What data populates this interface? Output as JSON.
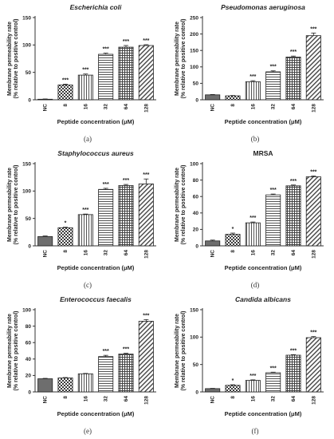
{
  "figure": {
    "y_axis_label_line1": "Membrane permeability rate",
    "y_axis_label_line2": "(% relative to positive control)",
    "x_axis_label": "Peptide concentration (μM)"
  },
  "colors": {
    "NC": "#6e6e6e",
    "checker_dark": "#3a3a3a",
    "checker_light": "#ffffff",
    "stripe_dark": "#444444",
    "stripe_light": "#ffffff",
    "horiz_stripe_dark": "#555555",
    "vert_stripe_dark": "#555555",
    "diag_dark": "#444444"
  },
  "chart_data": [
    {
      "type": "bar",
      "panel_label": "(a)",
      "title": "Escherichia coli",
      "title_italic": true,
      "categories": [
        "NC",
        "8",
        "16",
        "32",
        "64",
        "128"
      ],
      "values": [
        1,
        27,
        45,
        83,
        96,
        99
      ],
      "errors": [
        0.5,
        1.5,
        2,
        2,
        3,
        1.5
      ],
      "significance": [
        "",
        "***",
        "***",
        "***",
        "***",
        "***"
      ],
      "ylim": [
        0,
        150
      ],
      "yticks": [
        0,
        50,
        100,
        150
      ],
      "xlabel": "Peptide concentration (μM)",
      "ylabel": "Membrane permeability rate (% relative to positive control)"
    },
    {
      "type": "bar",
      "panel_label": "(b)",
      "title": "Pseudomonas aeruginosa",
      "title_italic": true,
      "categories": [
        "NC",
        "8",
        "16",
        "32",
        "64",
        "128"
      ],
      "values": [
        15,
        12,
        55,
        85,
        130,
        195
      ],
      "errors": [
        1,
        1,
        3,
        3,
        3,
        8
      ],
      "significance": [
        "",
        "",
        "***",
        "***",
        "***",
        "***"
      ],
      "ylim": [
        0,
        250
      ],
      "yticks": [
        0,
        50,
        100,
        150,
        200,
        250
      ],
      "xlabel": "Peptide concentration (μM)",
      "ylabel": "Membrane permeability rate (% relative to positive control)"
    },
    {
      "type": "bar",
      "panel_label": "(c)",
      "title": "Staphylococcus aureus",
      "title_italic": true,
      "categories": [
        "NC",
        "8",
        "16",
        "32",
        "64",
        "128"
      ],
      "values": [
        17,
        33,
        57,
        103,
        110,
        113
      ],
      "errors": [
        1,
        1,
        1,
        2,
        2,
        9
      ],
      "significance": [
        "",
        "*",
        "***",
        "***",
        "***",
        "***"
      ],
      "ylim": [
        0,
        150
      ],
      "yticks": [
        0,
        50,
        100,
        150
      ],
      "xlabel": "Peptide concentration (μM)",
      "ylabel": "Membrane permeability rate (% relative to positive control)"
    },
    {
      "type": "bar",
      "panel_label": "(d)",
      "title": "MRSA",
      "title_italic": false,
      "categories": [
        "NC",
        "8",
        "16",
        "32",
        "64",
        "128"
      ],
      "values": [
        6,
        14,
        28,
        62,
        73,
        84
      ],
      "errors": [
        1,
        1.5,
        1,
        1,
        1,
        1
      ],
      "significance": [
        "",
        "*",
        "***",
        "***",
        "***",
        "***"
      ],
      "ylim": [
        0,
        100
      ],
      "yticks": [
        0,
        20,
        40,
        60,
        80,
        100
      ],
      "xlabel": "Peptide concentration (μM)",
      "ylabel": "Membrane permeability rate (% relative to positive control)"
    },
    {
      "type": "bar",
      "panel_label": "(e)",
      "title": "Enterococcus faecalis",
      "title_italic": true,
      "categories": [
        "NC",
        "8",
        "16",
        "32",
        "64",
        "128"
      ],
      "values": [
        16,
        17,
        22,
        43,
        46,
        86
      ],
      "errors": [
        0.5,
        0.5,
        0.5,
        1.5,
        1,
        2
      ],
      "significance": [
        "",
        "",
        "",
        "***",
        "***",
        "***"
      ],
      "ylim": [
        0,
        100
      ],
      "yticks": [
        0,
        20,
        40,
        60,
        80,
        100
      ],
      "xlabel": "Peptide concentration (μM)",
      "ylabel": "Membrane permeability rate (% relative to positive control)"
    },
    {
      "type": "bar",
      "panel_label": "(f)",
      "title": "Candida albicans",
      "title_italic": true,
      "categories": [
        "NC",
        "8",
        "16",
        "32",
        "64",
        "128"
      ],
      "values": [
        6,
        12,
        21,
        35,
        67,
        99
      ],
      "errors": [
        0.5,
        1,
        1,
        1,
        1,
        2
      ],
      "significance": [
        "",
        "*",
        "***",
        "***",
        "***",
        "***"
      ],
      "ylim": [
        0,
        150
      ],
      "yticks": [
        0,
        50,
        100,
        150
      ],
      "xlabel": "Peptide concentration (μM)",
      "ylabel": "Membrane permeability rate (% relative to positive control)"
    }
  ]
}
